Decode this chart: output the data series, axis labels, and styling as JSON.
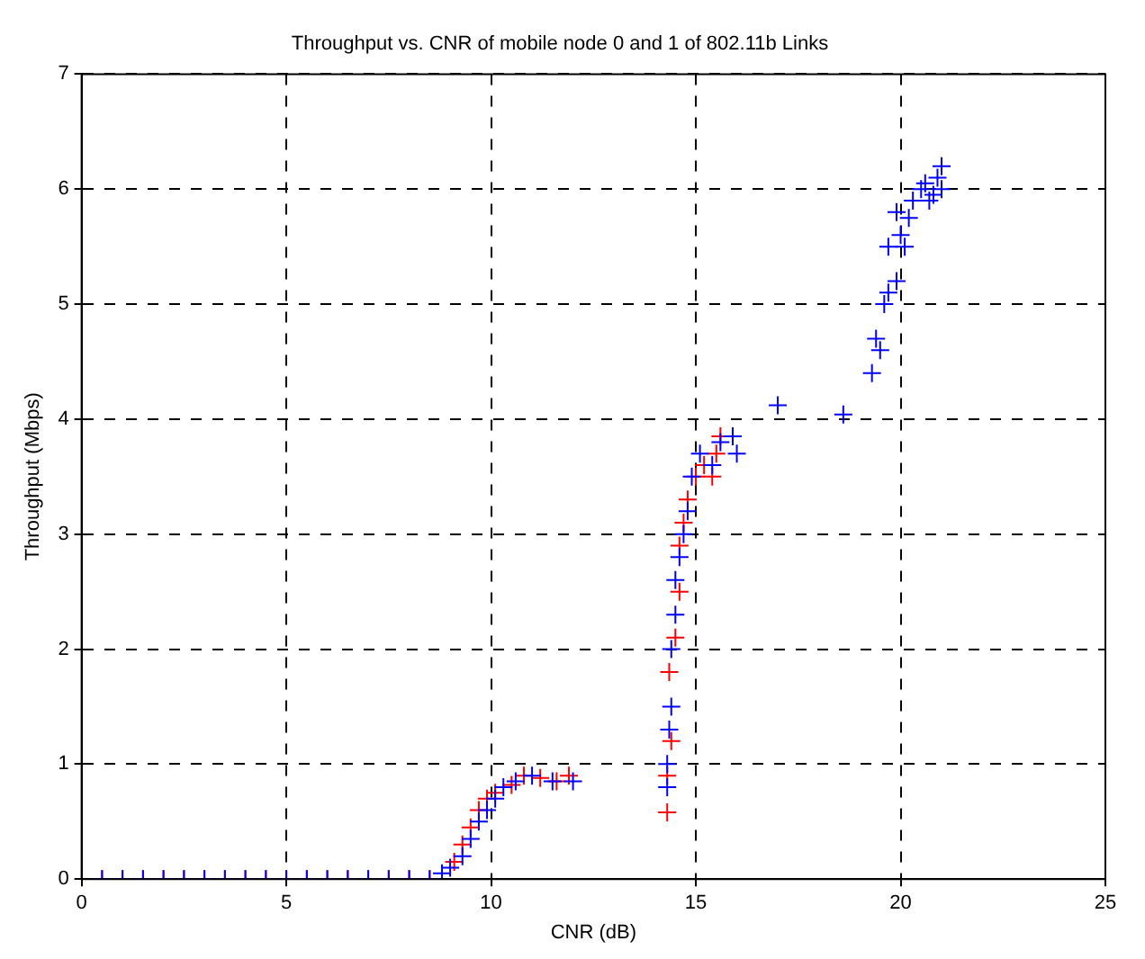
{
  "chart_data": {
    "type": "scatter",
    "title": "Throughput vs. CNR of mobile node 0 and 1 of 802.11b Links",
    "xlabel": "CNR (dB)",
    "ylabel": "Throughput (Mbps)",
    "xlim": [
      0,
      25
    ],
    "xticks": [
      0,
      5,
      10,
      15,
      20,
      25
    ],
    "ylim": [
      0,
      7
    ],
    "yticks": [
      0,
      1,
      2,
      3,
      4,
      5,
      6,
      7
    ],
    "grid": true,
    "marker": "cross",
    "legend": false,
    "series": [
      {
        "color": "#0000ff",
        "x": [
          0.5,
          1,
          1.5,
          2,
          2.5,
          3,
          3.5,
          4,
          4.5,
          5,
          5.5,
          6,
          6.5,
          7,
          7.5,
          8,
          8.5,
          8.8,
          9.0,
          9.3,
          9.5,
          9.7,
          9.9,
          10.1,
          10.3,
          10.6,
          11,
          11.5,
          12,
          14.3,
          14.3,
          14.35,
          14.4,
          14.4,
          14.5,
          14.5,
          14.6,
          14.7,
          14.8,
          14.9,
          15.1,
          15.4,
          15.6,
          15.9,
          16.0,
          17.0,
          18.6,
          19.3,
          19.4,
          19.5,
          19.6,
          19.7,
          19.9,
          19.7,
          20.0,
          19.9,
          20.1,
          20.2,
          20.3,
          20.5,
          20.6,
          20.8,
          20.9,
          21.0,
          20.7,
          21.0
        ],
        "values": [
          0,
          0,
          0,
          0,
          0,
          0,
          0,
          0,
          0,
          0,
          0,
          0,
          0,
          0,
          0,
          0,
          0,
          0.05,
          0.1,
          0.2,
          0.35,
          0.5,
          0.6,
          0.7,
          0.8,
          0.85,
          0.9,
          0.85,
          0.85,
          0.8,
          1.0,
          1.3,
          1.5,
          2.0,
          2.3,
          2.6,
          2.8,
          3.0,
          3.2,
          3.5,
          3.7,
          3.6,
          3.8,
          3.85,
          3.7,
          4.12,
          4.04,
          4.4,
          4.7,
          4.6,
          5.0,
          5.1,
          5.2,
          5.5,
          5.6,
          5.8,
          5.5,
          5.75,
          5.9,
          6.0,
          6.05,
          5.95,
          6.1,
          6.2,
          5.9,
          6.0
        ]
      },
      {
        "color": "#ff0000",
        "x": [
          0.5,
          1,
          1.5,
          2,
          2.5,
          3,
          3.5,
          4,
          4.5,
          5,
          5.5,
          6,
          6.5,
          7,
          7.5,
          8,
          8.5,
          9.1,
          9.3,
          9.5,
          9.7,
          9.9,
          10.1,
          10.5,
          10.8,
          11.2,
          11.6,
          11.9,
          14.3,
          14.3,
          14.4,
          14.35,
          14.5,
          14.6,
          14.6,
          14.7,
          14.8,
          15.0,
          15.2,
          15.4,
          15.5,
          15.6
        ],
        "values": [
          0,
          0,
          0,
          0,
          0,
          0,
          0,
          0,
          0,
          0,
          0,
          0,
          0,
          0,
          0,
          0,
          0,
          0.15,
          0.3,
          0.45,
          0.6,
          0.7,
          0.75,
          0.82,
          0.9,
          0.88,
          0.85,
          0.9,
          0.58,
          0.9,
          1.2,
          1.8,
          2.1,
          2.5,
          2.9,
          3.1,
          3.3,
          3.5,
          3.6,
          3.5,
          3.7,
          3.85
        ]
      }
    ]
  }
}
